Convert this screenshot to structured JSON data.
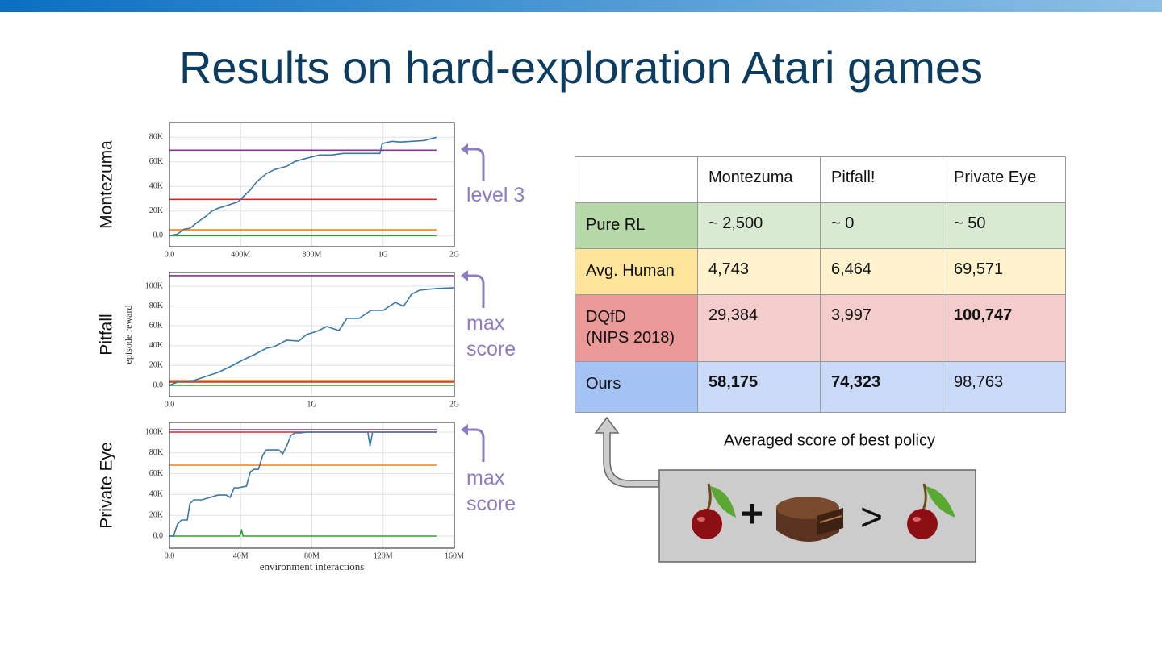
{
  "title": "Results on hard-exploration Atari games",
  "chart_data": [
    {
      "type": "line",
      "title": "Montezuma",
      "annotation": "level 3",
      "grid": true,
      "xlim": [
        0,
        1600000000
      ],
      "ylim": [
        -9000,
        92000
      ],
      "xticks": [
        {
          "value": 0,
          "label": "0.0"
        },
        {
          "value": 400000000,
          "label": "400M"
        },
        {
          "value": 800000000,
          "label": "800M"
        },
        {
          "value": 1200000000,
          "label": "1G"
        },
        {
          "value": 1600000000,
          "label": "2G"
        }
      ],
      "yticks": [
        {
          "value": 0,
          "label": "0.0"
        },
        {
          "value": 20000,
          "label": "20K"
        },
        {
          "value": 40000,
          "label": "40K"
        },
        {
          "value": 60000,
          "label": "60K"
        },
        {
          "value": 80000,
          "label": "80K"
        }
      ],
      "series": [
        {
          "color": "#8e2e9e",
          "x": [
            0,
            1500000000
          ],
          "values": [
            69500,
            69500
          ]
        },
        {
          "color": "#d62728",
          "x": [
            0,
            1500000000
          ],
          "values": [
            29500,
            29500
          ]
        },
        {
          "color": "#ff7f0e",
          "x": [
            0,
            1500000000
          ],
          "values": [
            4700,
            4700
          ]
        },
        {
          "color": "#2ca02c",
          "x": [
            0,
            1500000000
          ],
          "values": [
            0,
            0
          ]
        },
        {
          "color": "#3a78a8",
          "x": [
            0,
            45000000,
            82000000,
            114000000,
            159000000,
            205000000,
            236000000,
            273000000,
            332000000,
            386000000,
            409000000,
            455000000,
            491000000,
            545000000,
            591000000,
            659000000,
            705000000,
            773000000,
            841000000,
            909000000,
            977000000,
            1045000000,
            1114000000,
            1182000000,
            1195000000,
            1250000000,
            1295000000,
            1364000000,
            1432000000,
            1500000000
          ],
          "values": [
            0,
            1300,
            5200,
            5900,
            11100,
            15700,
            19700,
            22300,
            24900,
            27500,
            30800,
            37400,
            43900,
            50500,
            53800,
            56400,
            60300,
            63000,
            65600,
            65600,
            66900,
            66900,
            66900,
            66900,
            74800,
            76700,
            76100,
            76700,
            77400,
            80000
          ]
        }
      ]
    },
    {
      "type": "line",
      "title": "Pitfall",
      "ylabel": "episode reward",
      "annotation": "max score",
      "grid": true,
      "xlim": [
        0,
        2000000000
      ],
      "ylim": [
        -11400,
        113800
      ],
      "xticks": [
        {
          "value": 0,
          "label": "0.0"
        },
        {
          "value": 1000000000,
          "label": "1G"
        },
        {
          "value": 2000000000,
          "label": "2G"
        }
      ],
      "yticks": [
        {
          "value": 0,
          "label": "0.0"
        },
        {
          "value": 20000,
          "label": "20K"
        },
        {
          "value": 40000,
          "label": "40K"
        },
        {
          "value": 60000,
          "label": "60K"
        },
        {
          "value": 80000,
          "label": "80K"
        },
        {
          "value": 100000,
          "label": "100K"
        }
      ],
      "series": [
        {
          "color": "#8e2e9e",
          "x": [
            0,
            2000000000
          ],
          "values": [
            110600,
            110600
          ]
        },
        {
          "color": "#ff7f0e",
          "x": [
            0,
            2000000000
          ],
          "values": [
            4900,
            4900
          ]
        },
        {
          "color": "#d62728",
          "x": [
            0,
            2000000000
          ],
          "values": [
            3300,
            3300
          ]
        },
        {
          "color": "#2ca02c",
          "x": [
            0,
            2000000000
          ],
          "values": [
            0,
            0
          ]
        },
        {
          "color": "#3a78a8",
          "x": [
            0,
            57000000,
            170000000,
            255000000,
            340000000,
            425000000,
            510000000,
            595000000,
            680000000,
            737000000,
            822000000,
            907000000,
            963000000,
            1048000000,
            1105000000,
            1190000000,
            1246000000,
            1331000000,
            1416000000,
            1501000000,
            1586000000,
            1643000000,
            1700000000,
            1756000000,
            1870000000,
            2000000000
          ],
          "values": [
            0,
            3300,
            4900,
            8900,
            13000,
            18700,
            25200,
            30900,
            37400,
            39000,
            45500,
            44700,
            51200,
            55300,
            59300,
            55300,
            67500,
            67500,
            75600,
            75600,
            83700,
            79700,
            91900,
            95900,
            97600,
            98400
          ]
        }
      ]
    },
    {
      "type": "line",
      "title": "Private Eye",
      "xlabel": "environment interactions",
      "annotation": "max score",
      "grid": true,
      "xlim": [
        0,
        160000000
      ],
      "ylim": [
        -11600,
        109300
      ],
      "xticks": [
        {
          "value": 0,
          "label": "0.0"
        },
        {
          "value": 40000000,
          "label": "40M"
        },
        {
          "value": 80000000,
          "label": "80M"
        },
        {
          "value": 120000000,
          "label": "120M"
        },
        {
          "value": 160000000,
          "label": "160M"
        }
      ],
      "yticks": [
        {
          "value": 0,
          "label": "0.0"
        },
        {
          "value": 20000,
          "label": "20K"
        },
        {
          "value": 40000,
          "label": "40K"
        },
        {
          "value": 60000,
          "label": "60K"
        },
        {
          "value": 80000,
          "label": "80K"
        },
        {
          "value": 100000,
          "label": "100K"
        }
      ],
      "series": [
        {
          "color": "#8e2e9e",
          "x": [
            0,
            150000000
          ],
          "values": [
            102300,
            102300
          ]
        },
        {
          "color": "#d62728",
          "x": [
            0,
            150000000
          ],
          "values": [
            100000,
            100000
          ]
        },
        {
          "color": "#ff7f0e",
          "x": [
            0,
            150000000
          ],
          "values": [
            68200,
            68200
          ]
        },
        {
          "color": "#2ca02c",
          "x": [
            0,
            18200000,
            39500000,
            40500000,
            41400000,
            150000000
          ],
          "values": [
            0,
            0,
            0,
            5400,
            0,
            0
          ]
        },
        {
          "color": "#3a78a8",
          "x": [
            0,
            2300000,
            4500000,
            6800000,
            10000000,
            11400000,
            13600000,
            18200000,
            22700000,
            27300000,
            31800000,
            34100000,
            36400000,
            38600000,
            43200000,
            45500000,
            47700000,
            50000000,
            52300000,
            54500000,
            61400000,
            63600000,
            65900000,
            68200000,
            70500000,
            73600000,
            77300000,
            111400000,
            112700000,
            114100000,
            150000000
          ],
          "values": [
            0,
            0,
            11600,
            15500,
            15500,
            31000,
            34900,
            34900,
            37200,
            39500,
            39500,
            37200,
            46500,
            46500,
            48100,
            62000,
            64300,
            64300,
            77500,
            82900,
            82900,
            79100,
            86800,
            96900,
            99200,
            99200,
            100000,
            100000,
            86800,
            100000,
            100000
          ]
        }
      ]
    }
  ],
  "table": {
    "columns": [
      "Montezuma",
      "Pitfall!",
      "Private Eye"
    ],
    "rows": [
      {
        "label": [
          "Pure RL"
        ],
        "cells": [
          "~ 2,500",
          "~ 0",
          "~ 50"
        ],
        "bold": [],
        "color": "#b6d7a8",
        "cell_color": "#d9ead3"
      },
      {
        "label": [
          "Avg. Human"
        ],
        "cells": [
          "4,743",
          "6,464",
          "69,571"
        ],
        "bold": [],
        "color": "#ffe599",
        "cell_color": "#fff2cc"
      },
      {
        "label": [
          "DQfD",
          "(NIPS 2018)"
        ],
        "cells": [
          "29,384",
          "3,997",
          "100,747"
        ],
        "bold": [
          2
        ],
        "color": "#ea9999",
        "cell_color": "#f4cccc"
      },
      {
        "label": [
          "Ours"
        ],
        "cells": [
          "58,175",
          "74,323",
          "98,763"
        ],
        "bold": [
          0,
          1
        ],
        "color": "#a4c2f4",
        "cell_color": "#c9daf8"
      }
    ]
  },
  "caption": "Averaged score of best policy",
  "equation": [
    "+",
    ">"
  ]
}
